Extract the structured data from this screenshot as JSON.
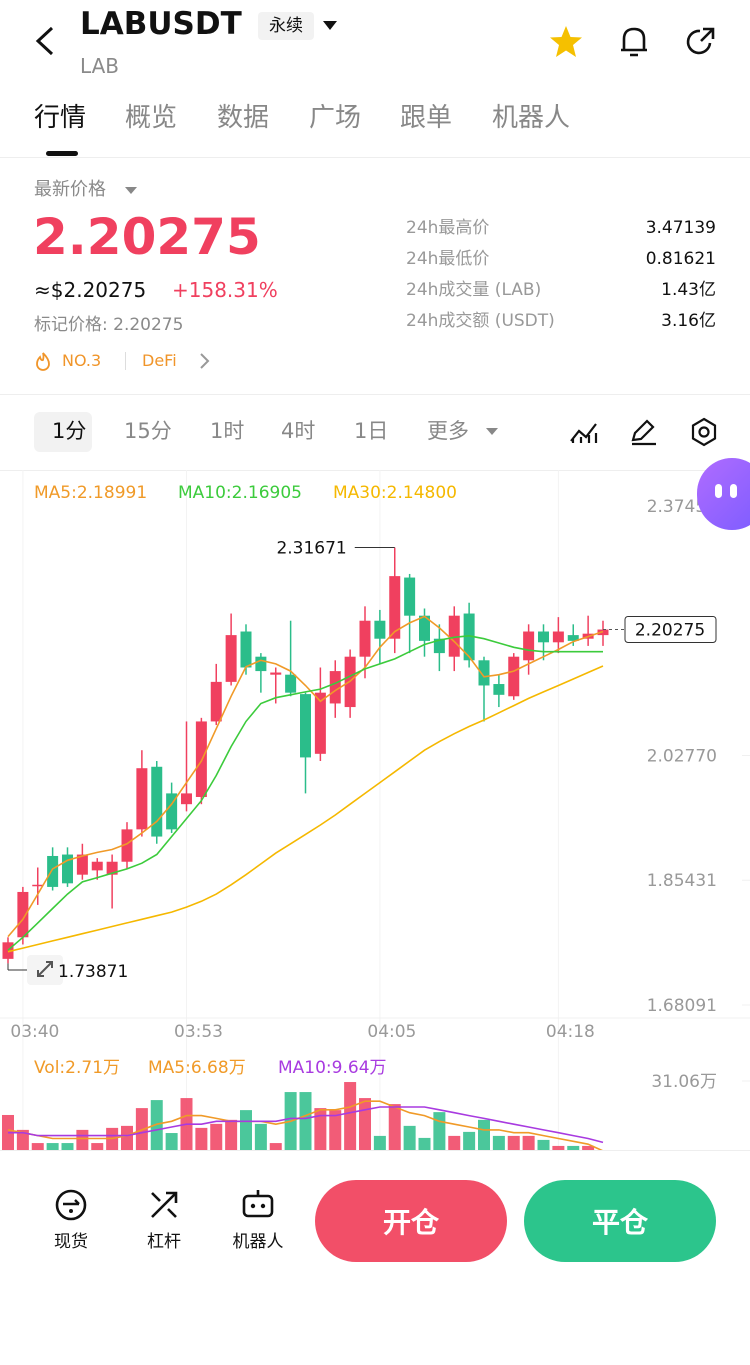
{
  "header": {
    "symbol": "LABUSDT",
    "badge": "永续",
    "base": "LAB"
  },
  "tabs": [
    "行情",
    "概览",
    "数据",
    "广场",
    "跟单",
    "机器人"
  ],
  "price": {
    "label": "最新价格",
    "last": "2.20275",
    "usd": "≈$2.20275",
    "change": "+158.31%",
    "mark": "标记价格: 2.20275",
    "rank": "NO.3",
    "sector": "DeFi"
  },
  "stats": [
    [
      "24h最高价",
      "3.47139"
    ],
    [
      "24h最低价",
      "0.81621"
    ],
    [
      "24h成交量 (LAB)",
      "1.43亿"
    ],
    [
      "24h成交额 (USDT)",
      "3.16亿"
    ]
  ],
  "intervals": [
    "1分",
    "15分",
    "1时",
    "4时",
    "1日",
    "更多"
  ],
  "chart_data": {
    "type": "candlestick",
    "categories": [
      null,
      "03:40",
      null,
      null,
      null,
      null,
      null,
      null,
      null,
      null,
      null,
      null,
      "03:53",
      null,
      null,
      null,
      null,
      null,
      null,
      null,
      null,
      null,
      null,
      null,
      null,
      "04:05",
      null,
      null,
      null,
      null,
      null,
      null,
      null,
      null,
      null,
      null,
      null,
      "04:18",
      null,
      null,
      null
    ],
    "open": [
      1.745,
      1.775,
      1.846,
      1.888,
      1.89,
      1.862,
      1.868,
      1.862,
      1.88,
      1.925,
      2.012,
      1.975,
      1.96,
      1.97,
      2.075,
      2.13,
      2.2,
      2.165,
      2.14,
      2.14,
      2.113,
      2.03,
      2.1,
      2.095,
      2.165,
      2.215,
      2.19,
      2.275,
      2.222,
      2.19,
      2.165,
      2.225,
      2.16,
      2.127,
      2.11,
      2.16,
      2.2,
      2.185,
      2.195,
      2.19,
      2.195
    ],
    "high": [
      1.775,
      1.845,
      1.872,
      1.9,
      1.9,
      1.905,
      1.885,
      1.89,
      1.935,
      2.035,
      2.02,
      1.99,
      2.075,
      2.08,
      2.155,
      2.225,
      2.21,
      2.17,
      2.15,
      2.215,
      2.115,
      2.15,
      2.16,
      2.175,
      2.235,
      2.23,
      2.31671,
      2.28,
      2.232,
      2.21,
      2.235,
      2.24,
      2.165,
      2.14,
      2.17,
      2.21,
      2.21,
      2.22,
      2.21,
      2.222,
      2.215
    ],
    "low": [
      1.73871,
      1.765,
      1.82,
      1.84,
      1.845,
      1.855,
      1.855,
      1.815,
      1.87,
      1.915,
      1.905,
      1.92,
      1.95,
      1.96,
      2.07,
      2.125,
      2.14,
      2.115,
      2.1,
      2.11,
      1.975,
      2.02,
      2.08,
      2.08,
      2.135,
      2.155,
      2.17,
      2.17,
      2.165,
      2.145,
      2.145,
      2.15,
      2.075,
      2.095,
      2.105,
      2.14,
      2.16,
      2.17,
      2.18,
      2.18,
      2.18
    ],
    "close": [
      1.768,
      1.838,
      1.848,
      1.845,
      1.85,
      1.89,
      1.88,
      1.88,
      1.925,
      2.01,
      1.915,
      1.925,
      1.975,
      2.075,
      2.13,
      2.195,
      2.15,
      2.145,
      2.143,
      2.115,
      2.025,
      2.115,
      2.145,
      2.165,
      2.215,
      2.19,
      2.277,
      2.222,
      2.187,
      2.17,
      2.222,
      2.16,
      2.125,
      2.112,
      2.165,
      2.2,
      2.185,
      2.2,
      2.187,
      2.197,
      2.20275
    ],
    "up_color": "#f0405f",
    "down_color": "#2bbd8a",
    "series": [
      {
        "name": "MA5:2.18991",
        "color": "#f09a28",
        "values": [
          1.776,
          1.8,
          1.835,
          1.87,
          1.882,
          1.888,
          1.893,
          1.897,
          1.905,
          1.92,
          1.936,
          1.96,
          1.99,
          2.02,
          2.065,
          2.11,
          2.151,
          2.16,
          2.155,
          2.145,
          2.125,
          2.103,
          2.118,
          2.131,
          2.15,
          2.178,
          2.2,
          2.212,
          2.221,
          2.205,
          2.186,
          2.165,
          2.137,
          2.14,
          2.145,
          2.155,
          2.165,
          2.175,
          2.186,
          2.193,
          2.2
        ]
      },
      {
        "name": "MA10:2.16905",
        "color": "#3ccb3c",
        "values": [
          1.757,
          1.775,
          1.795,
          1.815,
          1.835,
          1.852,
          1.858,
          1.864,
          1.87,
          1.878,
          1.89,
          1.915,
          1.94,
          1.965,
          2.0,
          2.04,
          2.075,
          2.1,
          2.108,
          2.112,
          2.116,
          2.12,
          2.128,
          2.138,
          2.148,
          2.155,
          2.162,
          2.172,
          2.182,
          2.188,
          2.192,
          2.194,
          2.19,
          2.184,
          2.178,
          2.174,
          2.172,
          2.172,
          2.172,
          2.172,
          2.172
        ]
      },
      {
        "name": "MA30:2.14800",
        "color": "#f5b800",
        "values": [
          1.755,
          1.76,
          1.765,
          1.77,
          1.775,
          1.78,
          1.785,
          1.79,
          1.795,
          1.8,
          1.805,
          1.81,
          1.817,
          1.825,
          1.835,
          1.848,
          1.862,
          1.877,
          1.892,
          1.905,
          1.918,
          1.931,
          1.945,
          1.96,
          1.975,
          1.99,
          2.005,
          2.02,
          2.035,
          2.047,
          2.058,
          2.068,
          2.077,
          2.087,
          2.097,
          2.107,
          2.116,
          2.125,
          2.134,
          2.143,
          2.152
        ]
      }
    ],
    "ylim": [
      1.6628,
      2.4106
    ],
    "yticks": [
      {
        "value": 2.3745,
        "label": "2.37450"
      },
      {
        "value": 2.0277,
        "label": "2.02770"
      },
      {
        "value": 1.85431,
        "label": "1.85431"
      },
      {
        "value": 1.68091,
        "label": "1.68091"
      }
    ],
    "annotations": [
      {
        "text": "2.31671",
        "index": 26,
        "value": 2.31671
      },
      {
        "text": "1.73871",
        "index": 0,
        "value": 1.73871
      }
    ],
    "last_price": {
      "text": "2.20275",
      "value": 2.20275
    },
    "volume": {
      "values": [
        19.2,
        14.0,
        9.4,
        9.4,
        9.4,
        14.0,
        9.4,
        14.7,
        15.4,
        21.6,
        24.4,
        12.9,
        25.1,
        14.7,
        16.1,
        17.5,
        20.9,
        16.1,
        9.4,
        27.2,
        27.2,
        21.6,
        20.9,
        30.7,
        25.1,
        11.9,
        23.0,
        15.4,
        11.2,
        20.2,
        11.9,
        13.3,
        17.5,
        11.9,
        11.9,
        11.9,
        10.5,
        8.4,
        8.4,
        8.4,
        2.71
      ],
      "label": "Vol:2.71万",
      "label_color": "#f09a28",
      "series": [
        {
          "name": "MA5:6.68万",
          "color": "#f09a28",
          "values": [
            14,
            13,
            12,
            11,
            11,
            11,
            11,
            11,
            12,
            14,
            16,
            17,
            19,
            19,
            18,
            17,
            17,
            17,
            16,
            17,
            19,
            21,
            21,
            22,
            24,
            24,
            22,
            20,
            19,
            17,
            16,
            15,
            14,
            14,
            13,
            13,
            12,
            11,
            10,
            9,
            6.68
          ]
        },
        {
          "name": "MA10:9.64万",
          "color": "#a83ae0",
          "values": [
            13,
            13,
            12,
            12,
            12,
            12,
            12,
            12,
            12,
            13,
            14,
            15,
            16,
            16,
            17,
            17,
            17,
            17,
            17,
            18,
            18,
            19,
            19,
            20,
            21,
            22,
            22,
            22,
            22,
            21,
            20,
            19,
            18,
            17,
            16,
            15,
            14,
            13,
            12,
            11,
            9.64
          ]
        }
      ],
      "ylim": [
        0,
        31.06
      ],
      "yticks": [
        {
          "value": 31.06,
          "label": "31.06万"
        }
      ]
    }
  },
  "bottom": {
    "tools": [
      "现货",
      "杠杆",
      "机器人"
    ],
    "open": "开仓",
    "close": "平仓"
  }
}
